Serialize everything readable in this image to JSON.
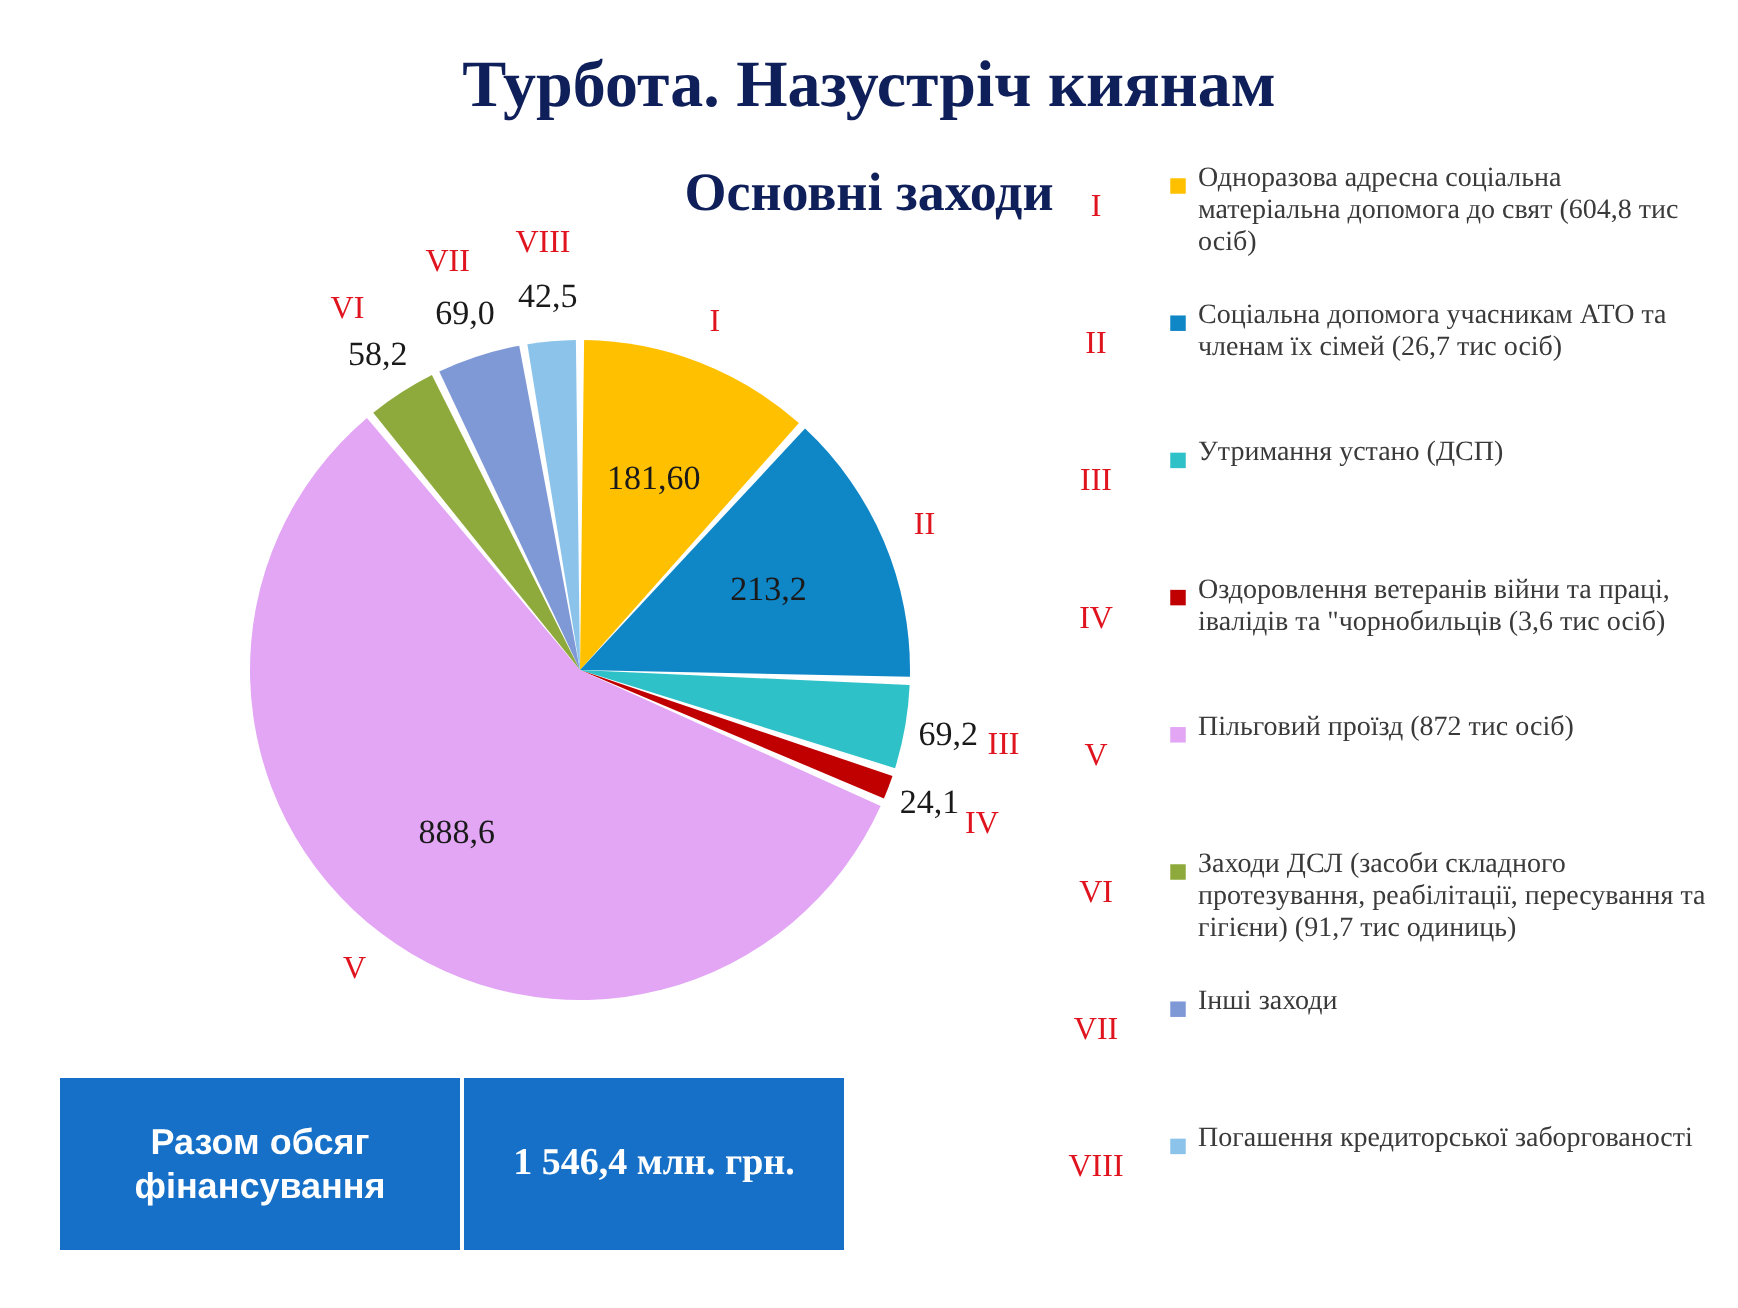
{
  "chart_data": {
    "type": "pie",
    "title": "Турбота. Назустріч киянам",
    "subtitle": "Основні заходи",
    "categories": [
      "Одноразова адресна соціальна матеріальна допомога до свят (604,8 тис осіб)",
      "Соціальна допомога учасникам АТО та членам їх сімей (26,7 тис осіб)",
      "Утримання устано (ДСП)",
      "Оздоровлення ветеранів війни та праці, івалідів та \"чорнобильців (3,6 тис осіб)",
      "Пільговий проїзд (872 тис осіб)",
      "Заходи ДСЛ (засоби складного протезування, реабілітації, пересування та гігієни) (91,7 тис одиниць)",
      "Інші заходи",
      "Погашення кредиторської заборгованості"
    ],
    "values": [
      181.6,
      213.2,
      69.2,
      24.1,
      888.6,
      58.2,
      69.0,
      42.5
    ],
    "value_labels": [
      "181,60",
      "213,2",
      "69,2",
      "24,1",
      "888,6",
      "58,2",
      "69,0",
      "42,5"
    ],
    "colors": [
      "#ffc000",
      "#0f86c6",
      "#2fc1c8",
      "#c00000",
      "#e3a6f5",
      "#8faa3c",
      "#7f98d6",
      "#8cc3ea"
    ],
    "legend": "right",
    "annotations": [
      "I",
      "II",
      "III",
      "IV",
      "V",
      "VI",
      "VII",
      "VIII",
      "Разом обсяг фінансування",
      "1 546,4 млн. грн."
    ]
  }
}
